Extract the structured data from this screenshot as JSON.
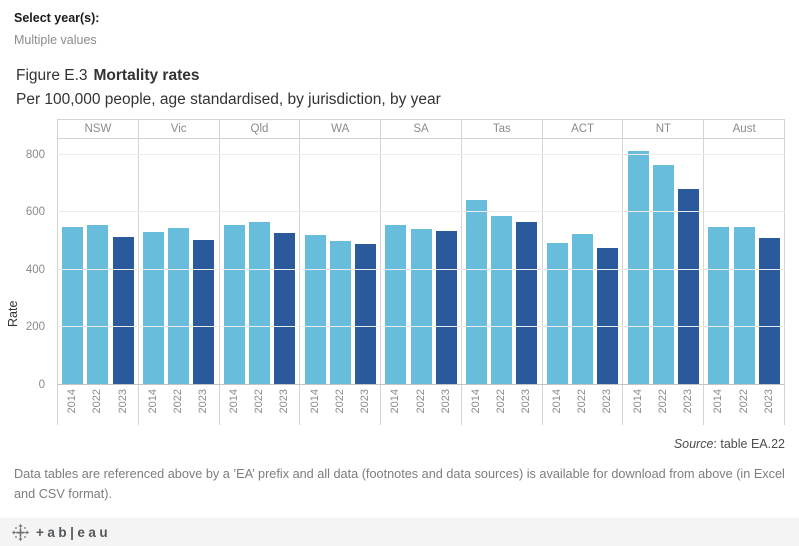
{
  "filter": {
    "label": "Select year(s):",
    "value": "Multiple values"
  },
  "title": {
    "figure_label": "Figure E.3",
    "title_bold": "Mortality rates",
    "subtitle": "Per 100,000 people, age standardised, by jurisdiction, by year"
  },
  "chart_data": {
    "type": "bar",
    "title": "Mortality rates",
    "categories": [
      "NSW",
      "Vic",
      "Qld",
      "WA",
      "SA",
      "Tas",
      "ACT",
      "NT",
      "Aust"
    ],
    "series": [
      {
        "name": "2014",
        "color": "#67bddb",
        "values": [
          550,
          533,
          555,
          520,
          555,
          642,
          492,
          812,
          548
        ]
      },
      {
        "name": "2022",
        "color": "#67bddb",
        "values": [
          556,
          546,
          567,
          500,
          541,
          588,
          524,
          763,
          548
        ]
      },
      {
        "name": "2023",
        "color": "#2a5a9b",
        "values": [
          514,
          505,
          527,
          489,
          535,
          567,
          476,
          679,
          512
        ]
      }
    ],
    "xlabel": "",
    "ylabel": "Rate",
    "yticks": [
      0,
      200,
      400,
      600,
      800
    ],
    "ylim": [
      0,
      854
    ],
    "grid": "horizontal",
    "legend": "none"
  },
  "source": {
    "label_italic": "Source",
    "text": ": table EA.22"
  },
  "footnote": "Data tables are referenced above by a ’EA’ prefix and all data (footnotes and data sources) is available for download from above (in Excel and CSV format).",
  "footer": {
    "brand_name": "tableau",
    "logo_text": "+ab|eau"
  }
}
